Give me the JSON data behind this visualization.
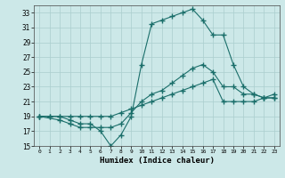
{
  "xlabel": "Humidex (Indice chaleur)",
  "bg_color": "#cce8e8",
  "grid_color": "#aacece",
  "line_color": "#1a6e6a",
  "xlim": [
    -0.5,
    23.5
  ],
  "ylim": [
    15,
    34
  ],
  "yticks": [
    15,
    17,
    19,
    21,
    23,
    25,
    27,
    29,
    31,
    33
  ],
  "xticks": [
    0,
    1,
    2,
    3,
    4,
    5,
    6,
    7,
    8,
    9,
    10,
    11,
    12,
    13,
    14,
    15,
    16,
    17,
    18,
    19,
    20,
    21,
    22,
    23
  ],
  "series1_x": [
    0,
    1,
    2,
    3,
    4,
    5,
    6,
    7,
    8,
    9,
    10,
    11,
    12,
    13,
    14,
    15,
    16,
    17,
    18,
    19,
    20,
    21,
    22,
    23
  ],
  "series1_y": [
    19,
    19,
    19,
    18.5,
    18,
    18,
    17,
    15,
    16.5,
    19,
    26,
    31.5,
    32,
    32.5,
    33,
    33.5,
    32,
    30,
    30,
    26,
    23,
    22,
    21.5,
    21.5
  ],
  "series2_x": [
    0,
    2,
    3,
    4,
    5,
    6,
    7,
    8,
    9,
    10,
    11,
    12,
    13,
    14,
    15,
    16,
    17,
    18,
    19,
    20,
    21,
    22,
    23
  ],
  "series2_y": [
    19,
    18.5,
    18,
    17.5,
    17.5,
    17.5,
    17.5,
    18,
    19.5,
    21,
    22,
    22.5,
    23.5,
    24.5,
    25.5,
    26,
    25,
    23,
    23,
    22,
    22,
    21.5,
    21.5
  ],
  "series3_x": [
    0,
    1,
    2,
    3,
    4,
    5,
    6,
    7,
    8,
    9,
    10,
    11,
    12,
    13,
    14,
    15,
    16,
    17,
    18,
    19,
    20,
    21,
    22,
    23
  ],
  "series3_y": [
    19,
    19,
    19,
    19,
    19,
    19,
    19,
    19,
    19.5,
    20,
    20.5,
    21,
    21.5,
    22,
    22.5,
    23,
    23.5,
    24,
    21,
    21,
    21,
    21,
    21.5,
    22
  ]
}
